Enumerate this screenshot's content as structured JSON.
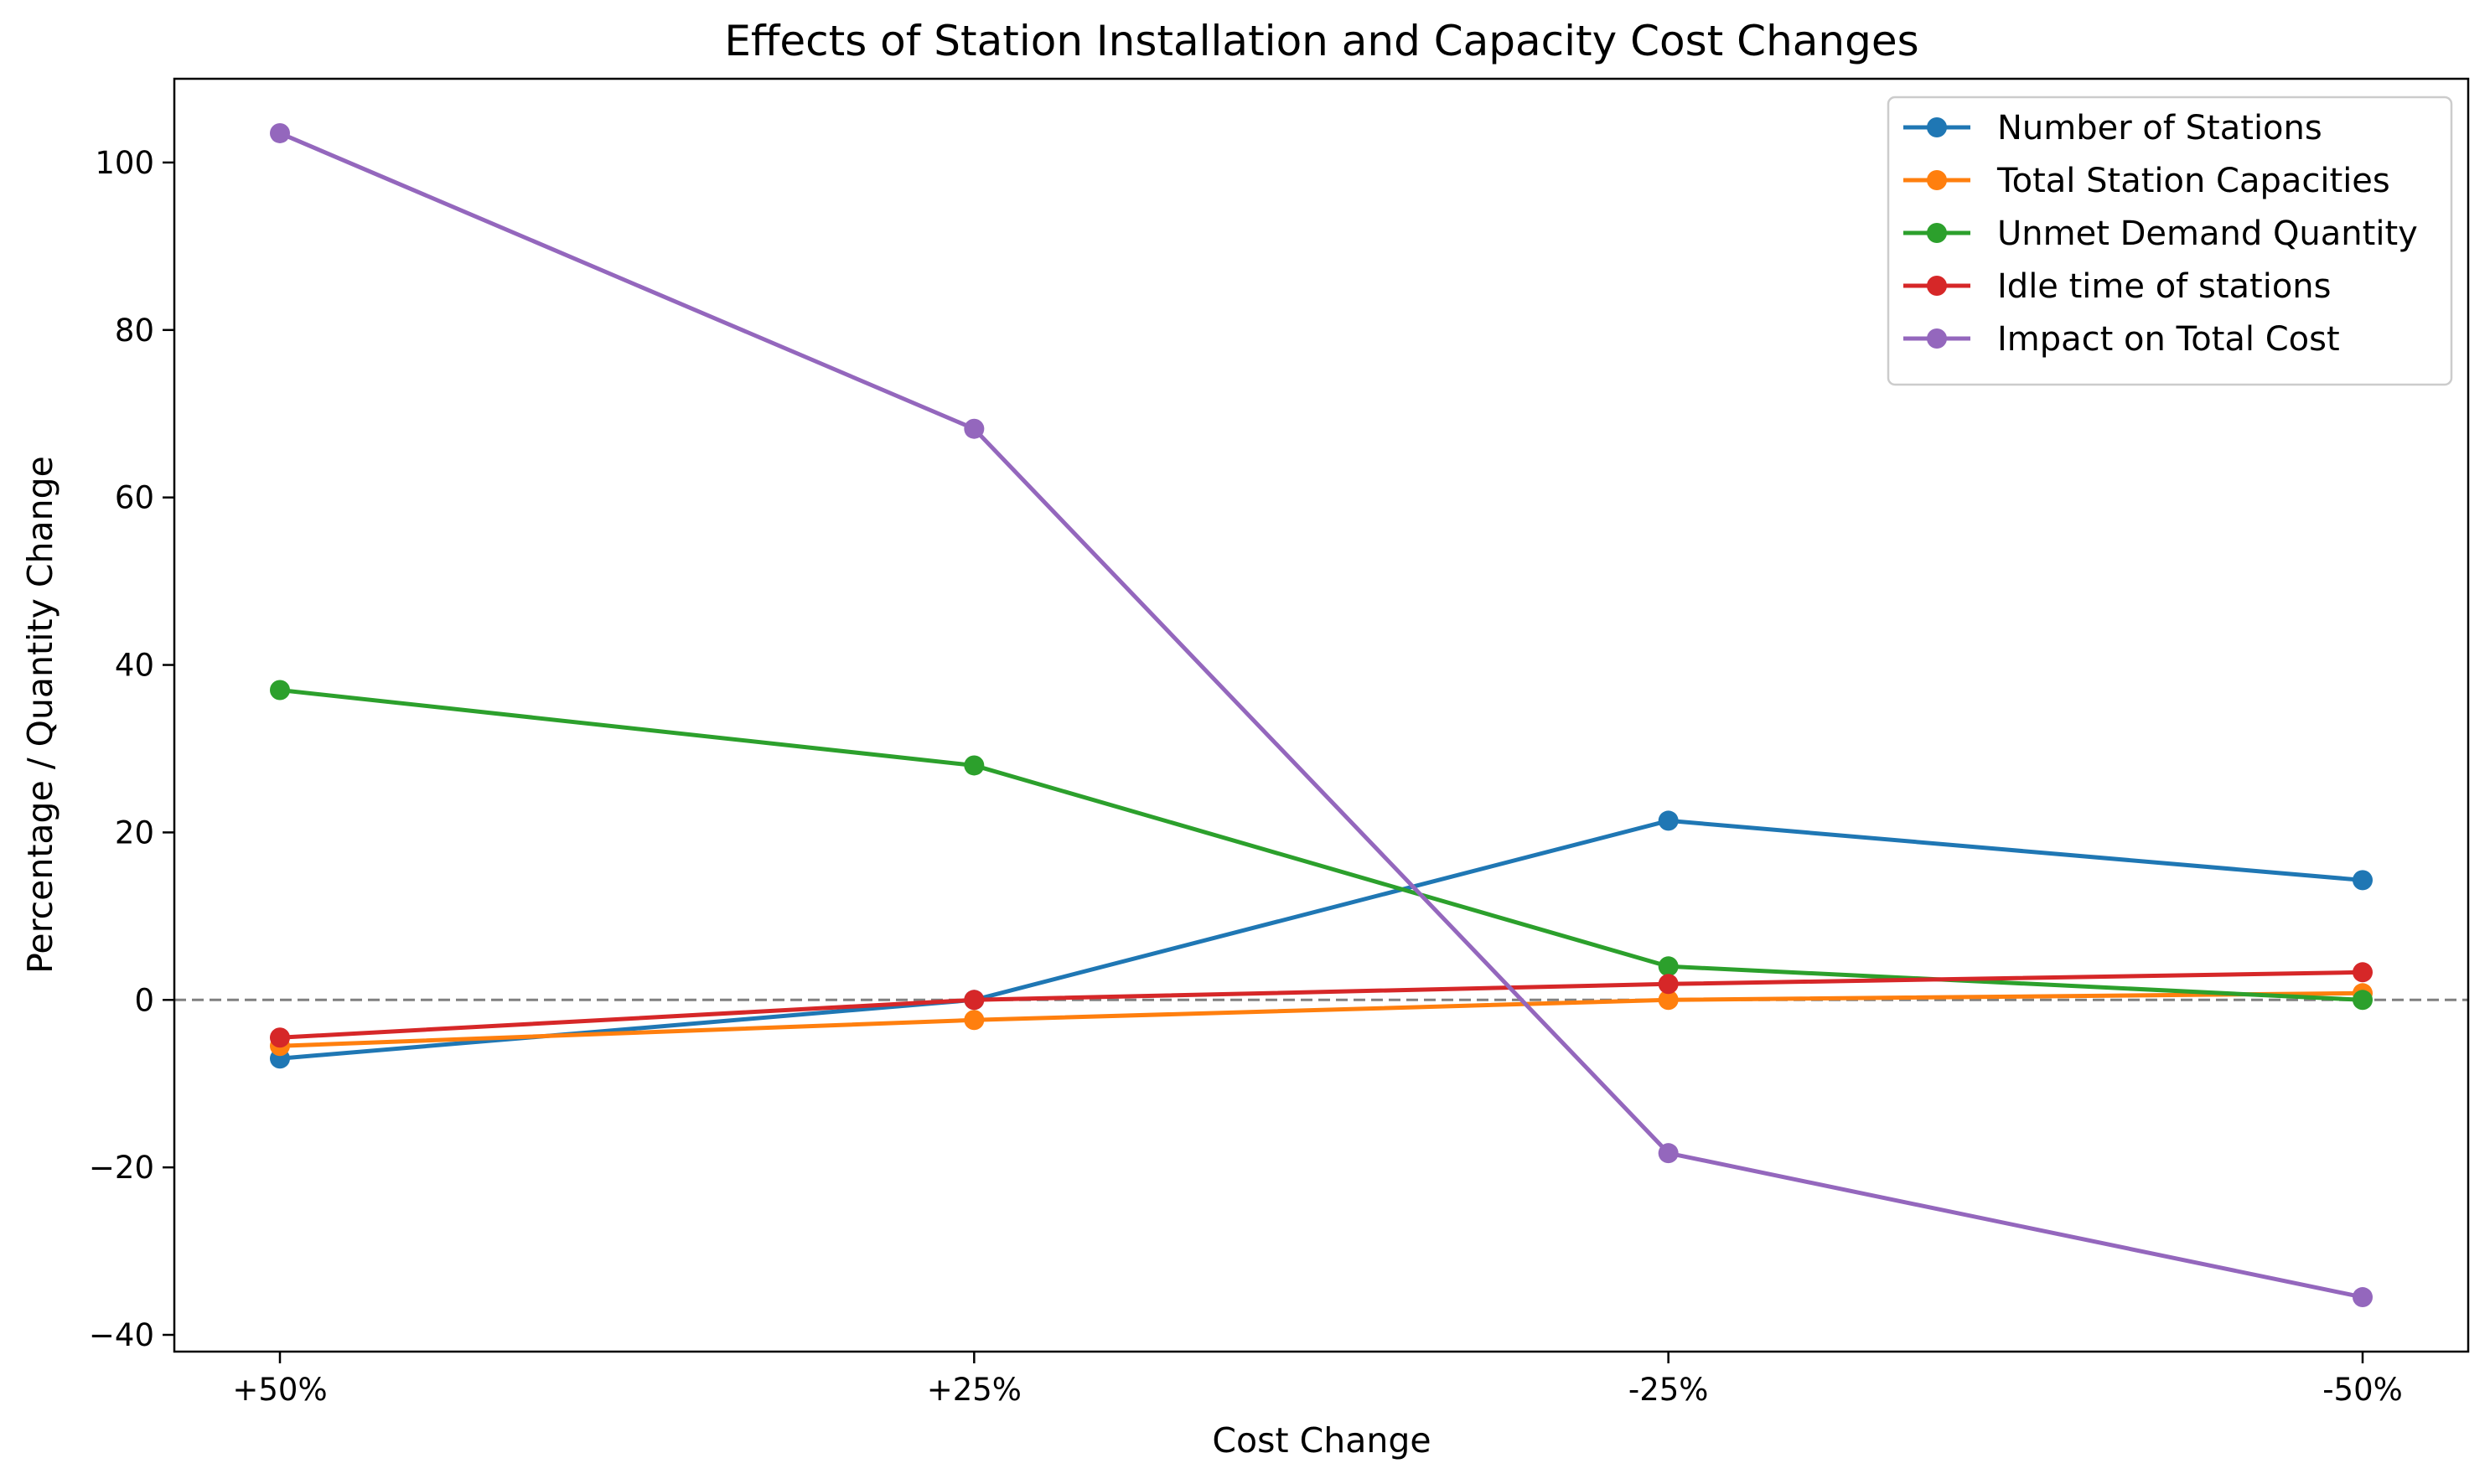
{
  "chart_data": {
    "type": "line",
    "title": "Effects of Station Installation and Capacity Cost Changes",
    "xlabel": "Cost Change",
    "ylabel": "Percentage / Quantity Change",
    "categories": [
      "+50%",
      "+25%",
      "-25%",
      "-50%"
    ],
    "ylim": [
      -42,
      110
    ],
    "yticks": [
      -40,
      -20,
      0,
      20,
      40,
      60,
      80,
      100
    ],
    "ytick_labels": [
      "−40",
      "−20",
      "0",
      "20",
      "40",
      "60",
      "80",
      "100"
    ],
    "reference_line": 0,
    "grid": false,
    "legend_position": "top-right",
    "series": [
      {
        "name": "Number of Stations",
        "color": "#1f77b4",
        "values": [
          -7.0,
          0.0,
          21.4,
          14.3
        ]
      },
      {
        "name": "Total Station Capacities",
        "color": "#ff7f0e",
        "values": [
          -5.5,
          -2.4,
          0.0,
          0.8
        ]
      },
      {
        "name": "Unmet Demand Quantity",
        "color": "#2ca02c",
        "values": [
          37.0,
          28.0,
          4.0,
          0.0
        ]
      },
      {
        "name": "Idle time of stations",
        "color": "#d62728",
        "values": [
          -4.5,
          0.0,
          1.9,
          3.3
        ]
      },
      {
        "name": "Impact on Total Cost",
        "color": "#9467bd",
        "values": [
          103.5,
          68.2,
          -18.3,
          -35.5
        ]
      }
    ]
  }
}
